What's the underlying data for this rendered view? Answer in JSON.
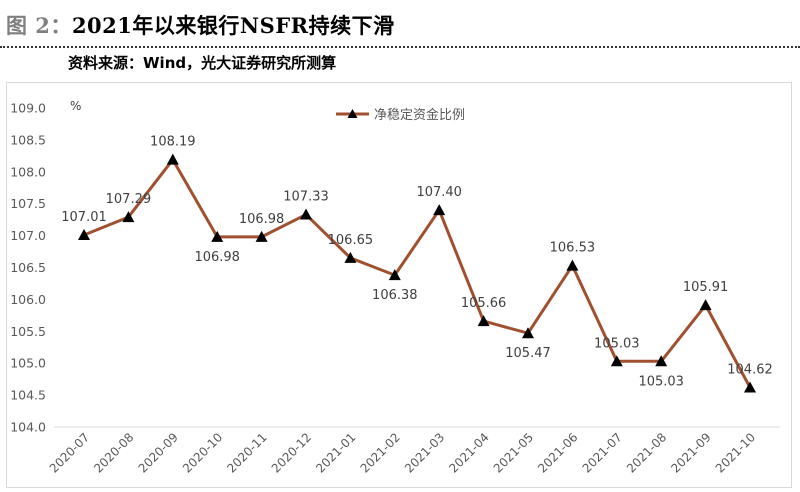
{
  "header": {
    "figure_label": "图 2：",
    "title": "2021年以来银行NSFR持续下滑",
    "source": "资料来源：Wind，光大证券研究所测算"
  },
  "colors": {
    "line": "#a0502e",
    "marker": "#000000",
    "axis": "#d9d9d9",
    "text": "#595959"
  },
  "chart_data": {
    "type": "line",
    "title": "2021年以来银行NSFR持续下滑",
    "unit": "%",
    "categories": [
      "2020-07",
      "2020-08",
      "2020-09",
      "2020-10",
      "2020-11",
      "2020-12",
      "2021-01",
      "2021-02",
      "2021-03",
      "2021-04",
      "2021-05",
      "2021-06",
      "2021-07",
      "2021-08",
      "2021-09",
      "2021-10"
    ],
    "series": [
      {
        "name": "净稳定资金比例",
        "values": [
          107.01,
          107.29,
          108.19,
          106.98,
          106.98,
          107.33,
          106.65,
          106.38,
          107.4,
          105.66,
          105.47,
          106.53,
          105.03,
          105.03,
          105.91,
          104.62
        ],
        "labels": [
          "107.01",
          "107.29",
          "108.19",
          "106.98",
          "106.98",
          "107.33",
          "106.65",
          "106.38",
          "107.40",
          "105.66",
          "105.47",
          "106.53",
          "105.03",
          "105.03",
          "105.91",
          "104.62"
        ],
        "label_pos": [
          "above",
          "above",
          "above",
          "below",
          "above",
          "above",
          "above",
          "below",
          "above",
          "above",
          "below",
          "above",
          "above",
          "below",
          "above",
          "above"
        ]
      }
    ],
    "ylim": [
      104.0,
      109.0
    ],
    "yticks": [
      "104.0",
      "104.5",
      "105.0",
      "105.5",
      "106.0",
      "106.5",
      "107.0",
      "107.5",
      "108.0",
      "108.5",
      "109.0"
    ],
    "legend_position": "top-center",
    "grid": false,
    "marker": "triangle"
  }
}
